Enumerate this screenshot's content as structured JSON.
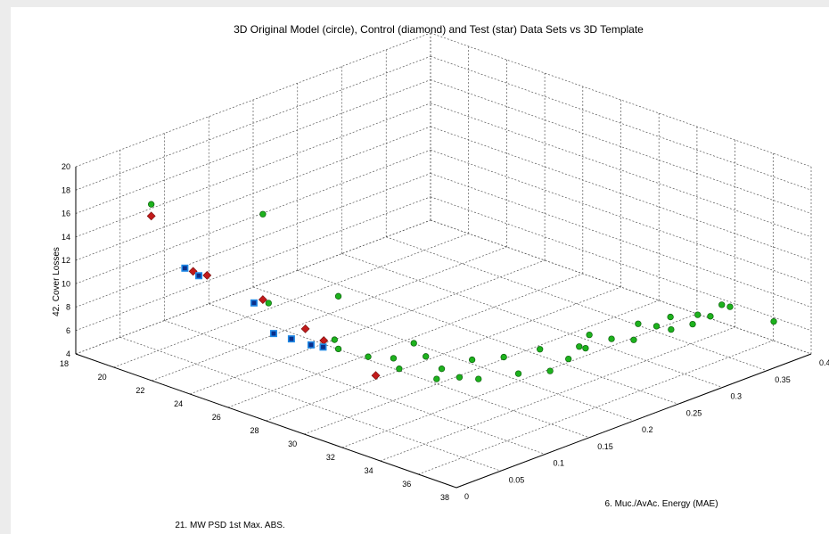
{
  "chart_data": {
    "type": "scatter",
    "projection": "3d",
    "title": "3D Original Model (circle), Control (diamond) and Test (star) Data Sets vs 3D Template",
    "xlabel": "6. Muc./AvAc. Energy (MAE)",
    "ylabel": "21. MW PSD 1st Max. ABS.",
    "zlabel": "42. Cover Losses",
    "xlim": [
      0,
      0.4
    ],
    "ylim": [
      18,
      38
    ],
    "zlim": [
      4,
      20
    ],
    "xticks": [
      "0",
      "0.05",
      "0.1",
      "0.15",
      "0.2",
      "0.25",
      "0.3",
      "0.35",
      "0.4"
    ],
    "yticks": [
      "18",
      "20",
      "22",
      "24",
      "26",
      "28",
      "30",
      "32",
      "34",
      "36",
      "38"
    ],
    "zticks": [
      "4",
      "6",
      "8",
      "10",
      "12",
      "14",
      "16",
      "18",
      "20"
    ],
    "grid": true,
    "colors": {
      "model": "#1db21d",
      "control": "#c21b1b",
      "test": "#1e88e5",
      "background": "#ffffff"
    },
    "series": [
      {
        "marker": "circle",
        "x": [
          0.01,
          0.05,
          0.06,
          0.035,
          0.045,
          0.055,
          0.06,
          0.07,
          0.075,
          0.08,
          0.085,
          0.09,
          0.1,
          0.105,
          0.115,
          0.125,
          0.145,
          0.15,
          0.17,
          0.18,
          0.195,
          0.21,
          0.22,
          0.235,
          0.24,
          0.26,
          0.28,
          0.29,
          0.3,
          0.31,
          0.32,
          0.33,
          0.34,
          0.355,
          0.36,
          0.39
        ],
        "y": [
          21.5,
          25.5,
          29.0,
          26.5,
          29.5,
          30.8,
          29.0,
          32.5,
          31.5,
          33.5,
          33.0,
          30.5,
          33.5,
          31.5,
          33.8,
          33.0,
          34.5,
          33.5,
          35.0,
          34.0,
          34.8,
          35.0,
          34.2,
          35.2,
          33.8,
          35.2,
          34.5,
          35.0,
          35.3,
          34.8,
          35.5,
          35.3,
          35.5,
          35.4,
          35.6,
          36.5
        ],
        "z": [
          18.5,
          18.8,
          13.5,
          12.2,
          10.5,
          9.5,
          9.0,
          11.2,
          8.3,
          9.3,
          8.0,
          8.2,
          8.0,
          8.5,
          7.6,
          8.5,
          7.6,
          8.3,
          7.4,
          8.4,
          7.6,
          8.2,
          7.6,
          8.4,
          7.8,
          7.6,
          8.0,
          7.8,
          7.4,
          7.9,
          7.4,
          7.8,
          7.5,
          8.0,
          7.8,
          6.2
        ]
      },
      {
        "marker": "diamond",
        "x": [
          0.01,
          0.025,
          0.03,
          0.05,
          0.055,
          0.065,
          0.07
        ],
        "y": [
          21.5,
          23.0,
          23.5,
          25.5,
          27.5,
          28.0,
          30.5
        ],
        "z": [
          17.5,
          13.2,
          13.0,
          11.5,
          10.0,
          9.0,
          7.3
        ]
      },
      {
        "marker": "star",
        "x": [
          0.02,
          0.025,
          0.04,
          0.045,
          0.05,
          0.055,
          0.06
        ],
        "y": [
          22.8,
          23.3,
          25.5,
          26.3,
          27.0,
          27.8,
          28.2
        ],
        "z": [
          13.5,
          13.0,
          11.5,
          9.2,
          9.0,
          8.8,
          8.7
        ]
      }
    ]
  }
}
